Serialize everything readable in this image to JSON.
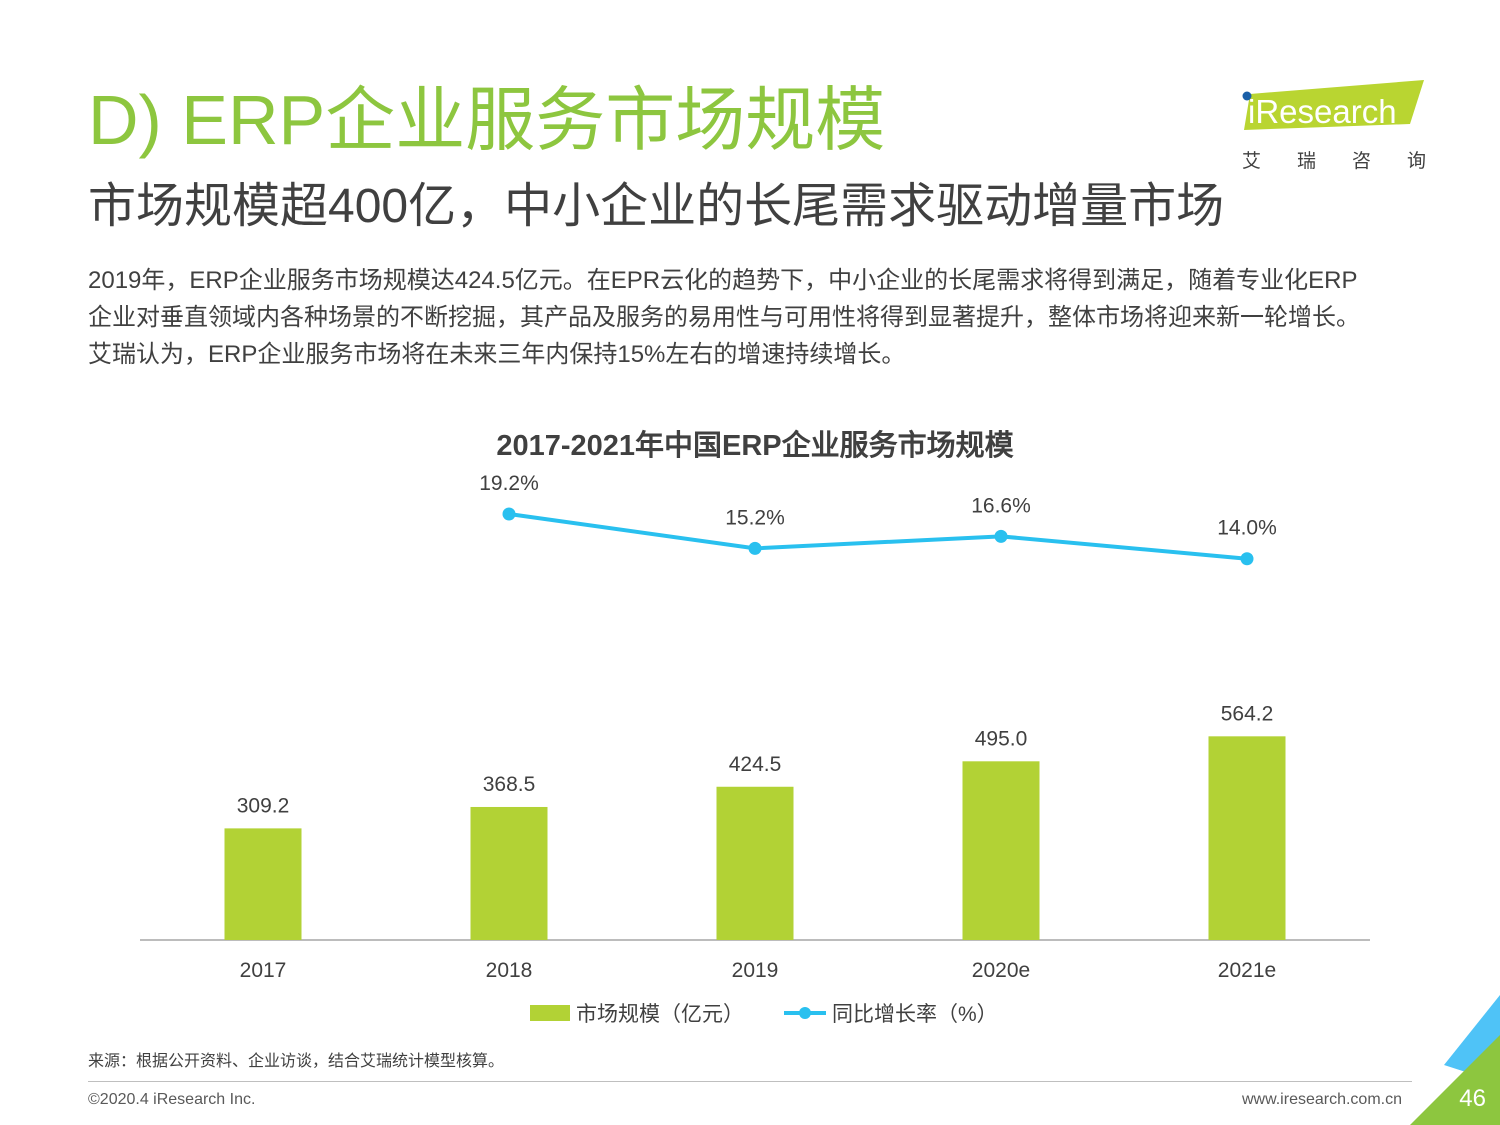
{
  "page": {
    "title": "D) ERP企业服务市场规模",
    "subtitle": "市场规模超400亿，中小企业的长尾需求驱动增量市场",
    "body_lines": [
      "2019年，ERP企业服务市场规模达424.5亿元。在EPR云化的趋势下，中小企业的长尾需求将得到满足，随着专业化ERP",
      "企业对垂直领域内各种场景的不断挖掘，其产品及服务的易用性与可用性将得到显著提升，整体市场将迎来新一轮增长。",
      "艾瑞认为，ERP企业服务市场将在未来三年内保持15%左右的增速持续增长。"
    ],
    "source": "来源：根据公开资料、企业访谈，结合艾瑞统计模型核算。",
    "copyright": "©2020.4 iResearch Inc.",
    "website": "www.iresearch.com.cn",
    "page_number": "46"
  },
  "logo": {
    "brand": "iResearch",
    "chinese": [
      "艾",
      "瑞",
      "咨",
      "询"
    ],
    "brand_color": "#b9d531",
    "dot_color": "#1a5fa8"
  },
  "chart_data": {
    "type": "bar",
    "title": "2017-2021年中国ERP企业服务市场规模",
    "categories": [
      "2017",
      "2018",
      "2019",
      "2020e",
      "2021e"
    ],
    "series": [
      {
        "name": "市场规模（亿元）",
        "type": "bar",
        "values": [
          309.2,
          368.5,
          424.5,
          495.0,
          564.2
        ],
        "labels": [
          "309.2",
          "368.5",
          "424.5",
          "495.0",
          "564.2"
        ],
        "color": "#b2d235"
      },
      {
        "name": "同比增长率（%）",
        "type": "line",
        "values": [
          null,
          19.2,
          15.2,
          16.6,
          14.0
        ],
        "labels": [
          "",
          "19.2%",
          "15.2%",
          "16.6%",
          "14.0%"
        ],
        "color": "#29c0ef"
      }
    ],
    "legend_position": "bottom",
    "grid": false
  }
}
